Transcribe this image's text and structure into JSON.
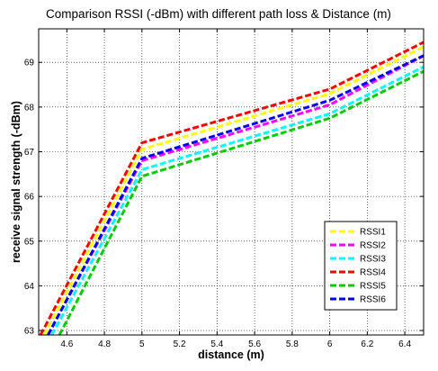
{
  "chart_data": {
    "type": "line",
    "title": "Comparison RSSI (-dBm) with different path loss & Distance (m)",
    "xlabel": "distance (m)",
    "ylabel": "receive signal strength (-dBm)",
    "xlim": [
      4.45,
      6.5
    ],
    "ylim": [
      62.9,
      69.75
    ],
    "xticks": [
      4.6,
      4.8,
      5,
      5.2,
      5.4,
      5.6,
      5.8,
      6,
      6.2,
      6.4
    ],
    "xtick_labels": [
      "4.6",
      "4.8",
      "5",
      "5.2",
      "5.4",
      "5.6",
      "5.8",
      "6",
      "6.2",
      "6.4"
    ],
    "yticks": [
      63,
      64,
      65,
      66,
      67,
      68,
      69
    ],
    "ytick_labels": [
      "63",
      "64",
      "65",
      "66",
      "67",
      "68",
      "69"
    ],
    "grid": true,
    "legend_position": "bottom-right",
    "line_style": "dashed",
    "series": [
      {
        "name": "RSSI1",
        "color": "#ffff00",
        "x": [
          4.48,
          5,
          6,
          6.5
        ],
        "y": [
          62.9,
          67.05,
          68.3,
          69.35
        ]
      },
      {
        "name": "RSSI2",
        "color": "#ff00ff",
        "x": [
          4.5,
          5,
          6,
          6.5
        ],
        "y": [
          62.9,
          66.8,
          68.05,
          69.15
        ]
      },
      {
        "name": "RSSI3",
        "color": "#00ffff",
        "x": [
          4.52,
          5,
          6,
          6.5
        ],
        "y": [
          62.9,
          66.6,
          67.85,
          68.9
        ]
      },
      {
        "name": "RSSI4",
        "color": "#ff0000",
        "x": [
          4.46,
          5,
          6,
          6.5
        ],
        "y": [
          62.9,
          67.2,
          68.4,
          69.45
        ]
      },
      {
        "name": "RSSI5",
        "color": "#00cc00",
        "x": [
          4.56,
          5,
          6,
          6.5
        ],
        "y": [
          62.9,
          66.45,
          67.75,
          68.8
        ]
      },
      {
        "name": "RSSI6",
        "color": "#0000ff",
        "x": [
          4.5,
          5,
          6,
          6.5
        ],
        "y": [
          62.9,
          66.85,
          68.15,
          69.15
        ]
      }
    ]
  }
}
